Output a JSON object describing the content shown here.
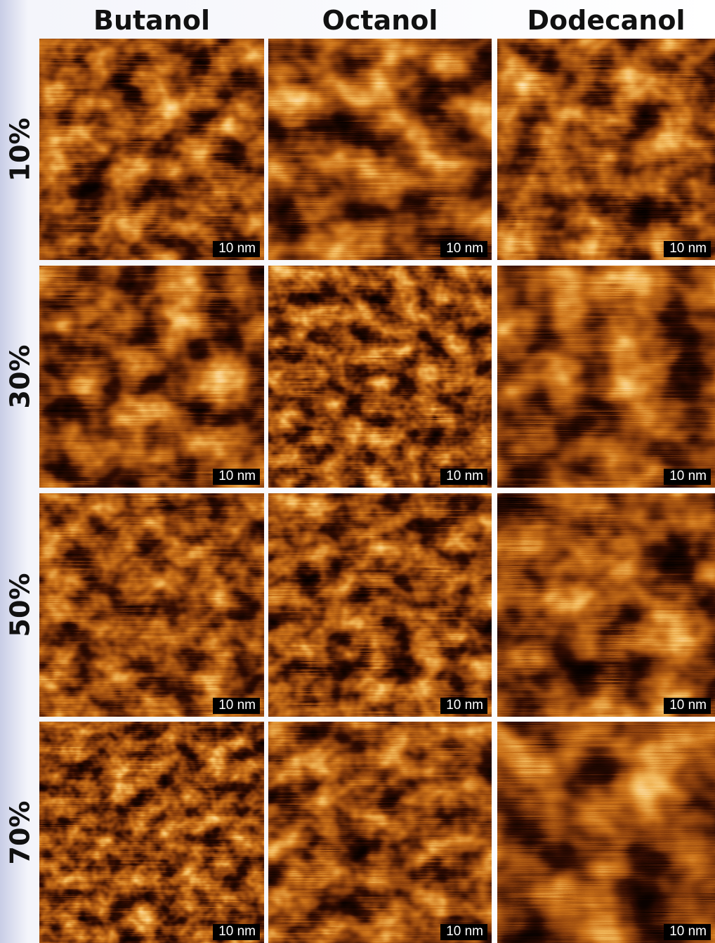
{
  "columns": [
    "Butanol",
    "Octanol",
    "Dodecanol"
  ],
  "rows": [
    "10%",
    "30%",
    "50%",
    "70%"
  ],
  "scale_bar_label": "10 nm",
  "colors": {
    "dark": "#1a0500",
    "mid": "#b36b1c",
    "light": "#fff6d8"
  }
}
